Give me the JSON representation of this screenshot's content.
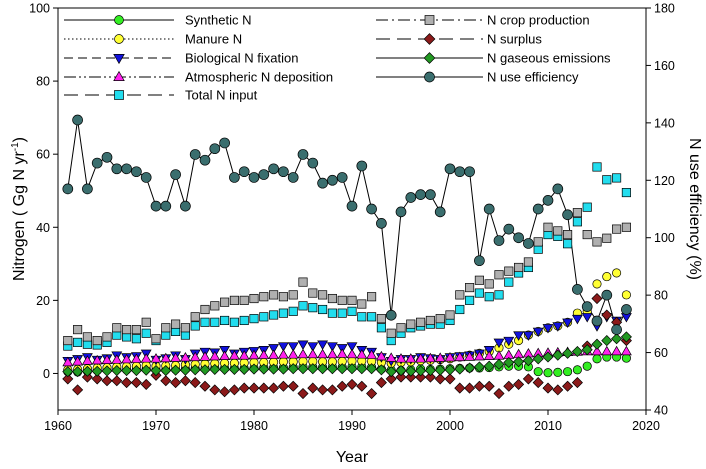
{
  "chart_data": {
    "type": "line",
    "title": "",
    "xlabel": "Year",
    "ylabel": "Nitrogen ( Gg N yr",
    "ylabel_sup": "-1",
    "ylabel_end": ")",
    "y2label": "N use efficiency (%)",
    "xlim": [
      1960,
      2020
    ],
    "ylim": [
      -10,
      100
    ],
    "y2lim": [
      40,
      180
    ],
    "xticks": [
      1960,
      1970,
      1980,
      1990,
      2000,
      2010,
      2020
    ],
    "yticks": [
      0,
      20,
      40,
      60,
      80,
      100
    ],
    "y2ticks": [
      40,
      60,
      80,
      100,
      120,
      140,
      160,
      180
    ],
    "x": [
      1961,
      1962,
      1963,
      1964,
      1965,
      1966,
      1967,
      1968,
      1969,
      1970,
      1971,
      1972,
      1973,
      1974,
      1975,
      1976,
      1977,
      1978,
      1979,
      1980,
      1981,
      1982,
      1983,
      1984,
      1985,
      1986,
      1987,
      1988,
      1989,
      1990,
      1991,
      1992,
      1993,
      1994,
      1995,
      1996,
      1997,
      1998,
      1999,
      2000,
      2001,
      2002,
      2003,
      2004,
      2005,
      2006,
      2007,
      2008,
      2009,
      2010,
      2011,
      2012,
      2013,
      2014,
      2015,
      2016,
      2017,
      2018
    ],
    "series": [
      {
        "name": "Synthetic N",
        "marker": "circle",
        "color": "#33ee22",
        "line": "solid",
        "axis": "left",
        "values": [
          0.5,
          0.4,
          0.6,
          0.8,
          1.0,
          1.2,
          1.0,
          1.1,
          1.2,
          1.0,
          1.0,
          1.1,
          1.2,
          1.3,
          1.4,
          1.5,
          1.5,
          1.4,
          1.4,
          1.5,
          1.6,
          1.6,
          1.6,
          1.7,
          1.8,
          1.7,
          1.7,
          1.8,
          1.7,
          1.8,
          1.8,
          1.7,
          1.2,
          0.9,
          0.8,
          1.0,
          1.2,
          1.1,
          1.2,
          1.3,
          1.4,
          1.5,
          1.5,
          1.6,
          1.8,
          2.0,
          2.0,
          1.8,
          0.5,
          0.2,
          0.3,
          0.5,
          1.0,
          2.0,
          4.0,
          4.5,
          4.5,
          4.2
        ]
      },
      {
        "name": "Manure N",
        "marker": "circle",
        "color": "#ffff33",
        "line": "dotted",
        "axis": "left",
        "values": [
          1.0,
          1.1,
          1.3,
          1.5,
          1.6,
          1.8,
          1.9,
          2.0,
          2.2,
          2.0,
          2.1,
          2.2,
          2.4,
          2.5,
          2.6,
          2.7,
          2.8,
          2.8,
          2.9,
          3.0,
          3.0,
          3.1,
          3.2,
          3.2,
          3.3,
          3.3,
          3.2,
          3.2,
          3.3,
          3.4,
          3.4,
          3.3,
          3.0,
          2.8,
          3.0,
          3.2,
          3.5,
          3.6,
          3.8,
          4.0,
          4.5,
          5.0,
          5.5,
          6.0,
          7.0,
          8.0,
          9.0,
          10.5,
          11.5,
          12.5,
          13.0,
          14.0,
          16.5,
          17.0,
          24.5,
          26.5,
          27.5,
          21.5
        ]
      },
      {
        "name": "Biological N fixation",
        "marker": "triangle-down",
        "color": "#1111dd",
        "line": "dashed",
        "axis": "left",
        "values": [
          3.5,
          4.0,
          4.5,
          3.8,
          4.2,
          5.0,
          4.5,
          4.8,
          5.5,
          3.8,
          4.2,
          5.0,
          4.0,
          5.5,
          6.0,
          5.8,
          6.5,
          5.5,
          6.0,
          6.2,
          6.5,
          7.0,
          7.5,
          7.5,
          8.0,
          7.5,
          8.0,
          7.5,
          7.0,
          7.5,
          6.5,
          6.0,
          4.5,
          3.5,
          4.0,
          4.0,
          4.5,
          4.2,
          4.0,
          4.5,
          4.8,
          5.0,
          5.5,
          6.5,
          8.5,
          9.0,
          10.5,
          10.5,
          11.5,
          12.5,
          13.0,
          14.0,
          15.0,
          15.5,
          13.0,
          15.5,
          14.5,
          15.5
        ]
      },
      {
        "name": "Atmospheric N deposition",
        "marker": "triangle-up",
        "color": "#ff22ee",
        "line": "dashdotdot",
        "axis": "left",
        "values": [
          3.0,
          3.2,
          3.4,
          3.5,
          3.6,
          3.7,
          3.8,
          3.9,
          4.0,
          4.0,
          4.1,
          4.2,
          4.3,
          4.4,
          4.5,
          4.6,
          4.7,
          4.8,
          4.8,
          4.9,
          5.0,
          5.0,
          5.1,
          5.1,
          5.2,
          5.2,
          5.2,
          5.2,
          5.3,
          5.2,
          5.1,
          5.0,
          4.6,
          4.2,
          4.0,
          4.0,
          4.0,
          4.1,
          4.2,
          4.3,
          4.4,
          4.5,
          4.6,
          4.7,
          4.8,
          5.0,
          5.2,
          5.4,
          5.5,
          5.6,
          5.7,
          5.8,
          5.9,
          6.0,
          6.0,
          6.0,
          6.0,
          6.0
        ]
      },
      {
        "name": "Total N input",
        "marker": "square",
        "color": "#22ddee",
        "line": "longdash",
        "axis": "left",
        "values": [
          7.5,
          8.5,
          8.0,
          7.8,
          8.5,
          10.5,
          10.0,
          9.5,
          11.0,
          9.0,
          10.5,
          11.5,
          10.5,
          13.0,
          14.0,
          14.0,
          14.5,
          14.0,
          14.5,
          15.0,
          15.5,
          16.0,
          16.5,
          17.0,
          18.5,
          18.0,
          17.5,
          16.5,
          16.5,
          17.0,
          15.5,
          15.5,
          12.5,
          9.0,
          11.0,
          12.5,
          13.0,
          13.5,
          13.5,
          14.5,
          17.5,
          20.0,
          22.0,
          21.0,
          21.5,
          25.0,
          27.5,
          29.0,
          34.0,
          38.0,
          37.5,
          35.5,
          41.5,
          45.5,
          56.5,
          53.0,
          53.5,
          49.5
        ]
      },
      {
        "name": "N crop production",
        "marker": "square",
        "color": "#b0b0b0",
        "line": "dashdot",
        "axis": "left",
        "values": [
          9.0,
          12.0,
          10.0,
          9.0,
          10.0,
          12.5,
          12.0,
          12.0,
          14.0,
          9.5,
          12.5,
          13.5,
          12.5,
          15.5,
          17.5,
          18.5,
          19.5,
          20.0,
          20.0,
          20.5,
          21.0,
          21.5,
          21.0,
          21.5,
          25.0,
          22.0,
          21.5,
          20.5,
          20.0,
          20.0,
          19.0,
          21.0,
          15.0,
          11.0,
          12.5,
          13.5,
          14.0,
          14.5,
          15.0,
          16.0,
          21.5,
          23.5,
          25.5,
          24.5,
          27.0,
          28.0,
          29.0,
          30.5,
          36.0,
          40.0,
          39.0,
          38.0,
          44.0,
          38.0,
          36.0,
          37.0,
          39.5,
          40.0
        ]
      },
      {
        "name": "N surplus",
        "marker": "diamond",
        "color": "#8b1a1a",
        "line": "longdash",
        "axis": "left",
        "values": [
          -1.5,
          -4.5,
          -1.0,
          -1.5,
          -2.0,
          -2.0,
          -2.5,
          -2.5,
          -3.0,
          -0.5,
          -2.0,
          -2.5,
          -2.0,
          -2.5,
          -3.5,
          -4.5,
          -5.0,
          -4.5,
          -4.0,
          -4.0,
          -4.0,
          -4.0,
          -3.5,
          -3.5,
          -5.5,
          -4.0,
          -4.5,
          -4.5,
          -3.5,
          -3.0,
          -3.5,
          -5.5,
          -2.5,
          -1.5,
          -1.0,
          -1.0,
          -1.0,
          -1.0,
          -1.5,
          -1.5,
          -4.0,
          -4.0,
          -3.5,
          -3.5,
          -5.5,
          -3.5,
          -3.0,
          -1.5,
          -2.5,
          -4.0,
          -4.5,
          -3.5,
          -2.5,
          7.5,
          20.5,
          16.0,
          14.0,
          9.0
        ]
      },
      {
        "name": "N gaseous emissions",
        "marker": "diamond",
        "color": "#229922",
        "line": "solid",
        "axis": "left",
        "values": [
          0.5,
          0.5,
          0.6,
          0.6,
          0.7,
          0.8,
          0.8,
          0.8,
          0.9,
          0.8,
          0.8,
          0.9,
          0.9,
          1.0,
          1.0,
          1.1,
          1.1,
          1.1,
          1.1,
          1.2,
          1.2,
          1.2,
          1.2,
          1.3,
          1.3,
          1.3,
          1.3,
          1.3,
          1.3,
          1.3,
          1.3,
          1.3,
          1.0,
          0.5,
          0.8,
          0.6,
          0.7,
          0.8,
          0.9,
          1.0,
          1.2,
          1.5,
          1.8,
          2.0,
          2.5,
          3.0,
          3.2,
          3.5,
          4.0,
          4.5,
          5.0,
          5.5,
          6.0,
          6.5,
          8.0,
          9.0,
          9.5,
          10.0
        ]
      },
      {
        "name": "N use efficiency",
        "marker": "circle",
        "color": "#3a6e6e",
        "line": "solid",
        "axis": "right",
        "values": [
          117,
          141,
          117,
          126,
          128,
          124,
          124,
          123,
          121,
          111,
          111,
          122,
          111,
          129,
          127,
          131,
          133,
          121,
          123,
          121,
          122,
          124,
          123,
          121,
          129,
          126,
          119,
          120,
          121,
          111,
          125,
          110,
          105,
          73,
          109,
          114,
          115,
          115,
          109,
          124,
          123,
          123,
          92,
          110,
          99,
          103,
          100,
          98,
          110,
          113,
          117,
          108,
          82,
          76,
          71,
          80,
          68,
          75
        ]
      }
    ]
  }
}
